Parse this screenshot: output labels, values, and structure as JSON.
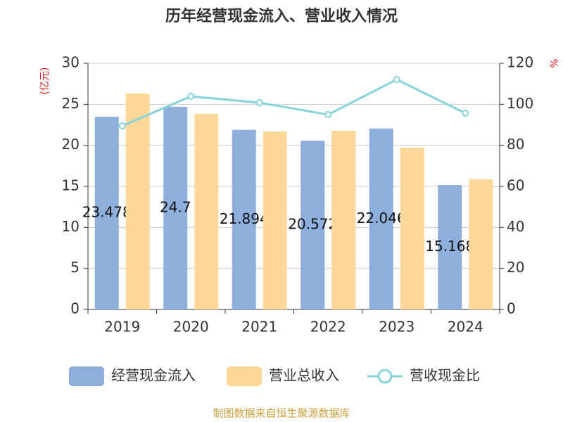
{
  "chart_data": {
    "type": "bar-line",
    "title": "历年经营现金流入、营业收入情况",
    "y_label": "(亿元)",
    "y2_label": "%",
    "categories": [
      "2019",
      "2020",
      "2021",
      "2022",
      "2023",
      "2024"
    ],
    "series": [
      {
        "name": "经营现金流入",
        "type": "bar",
        "color": "#8eaedb",
        "values": [
          23.478,
          24.7,
          21.894,
          20.572,
          22.046,
          15.168
        ]
      },
      {
        "name": "营业总收入",
        "type": "bar",
        "color": "#fdd899",
        "values": [
          26.31,
          23.83,
          21.69,
          21.77,
          19.71,
          15.86
        ]
      },
      {
        "name": "营收现金比",
        "type": "line",
        "axis": "y2",
        "color": "#86d3d8",
        "values": [
          89.5,
          103.9,
          100.8,
          95.0,
          112.1,
          95.7
        ]
      }
    ],
    "ylim": [
      0,
      30
    ],
    "yticks": [
      0,
      5,
      10,
      15,
      20,
      25,
      30
    ],
    "y2lim": [
      0,
      120
    ],
    "y2ticks": [
      0,
      20,
      40,
      60,
      80,
      100,
      120
    ],
    "grid": true,
    "source": "制图数据来自恒生聚源数据库"
  }
}
